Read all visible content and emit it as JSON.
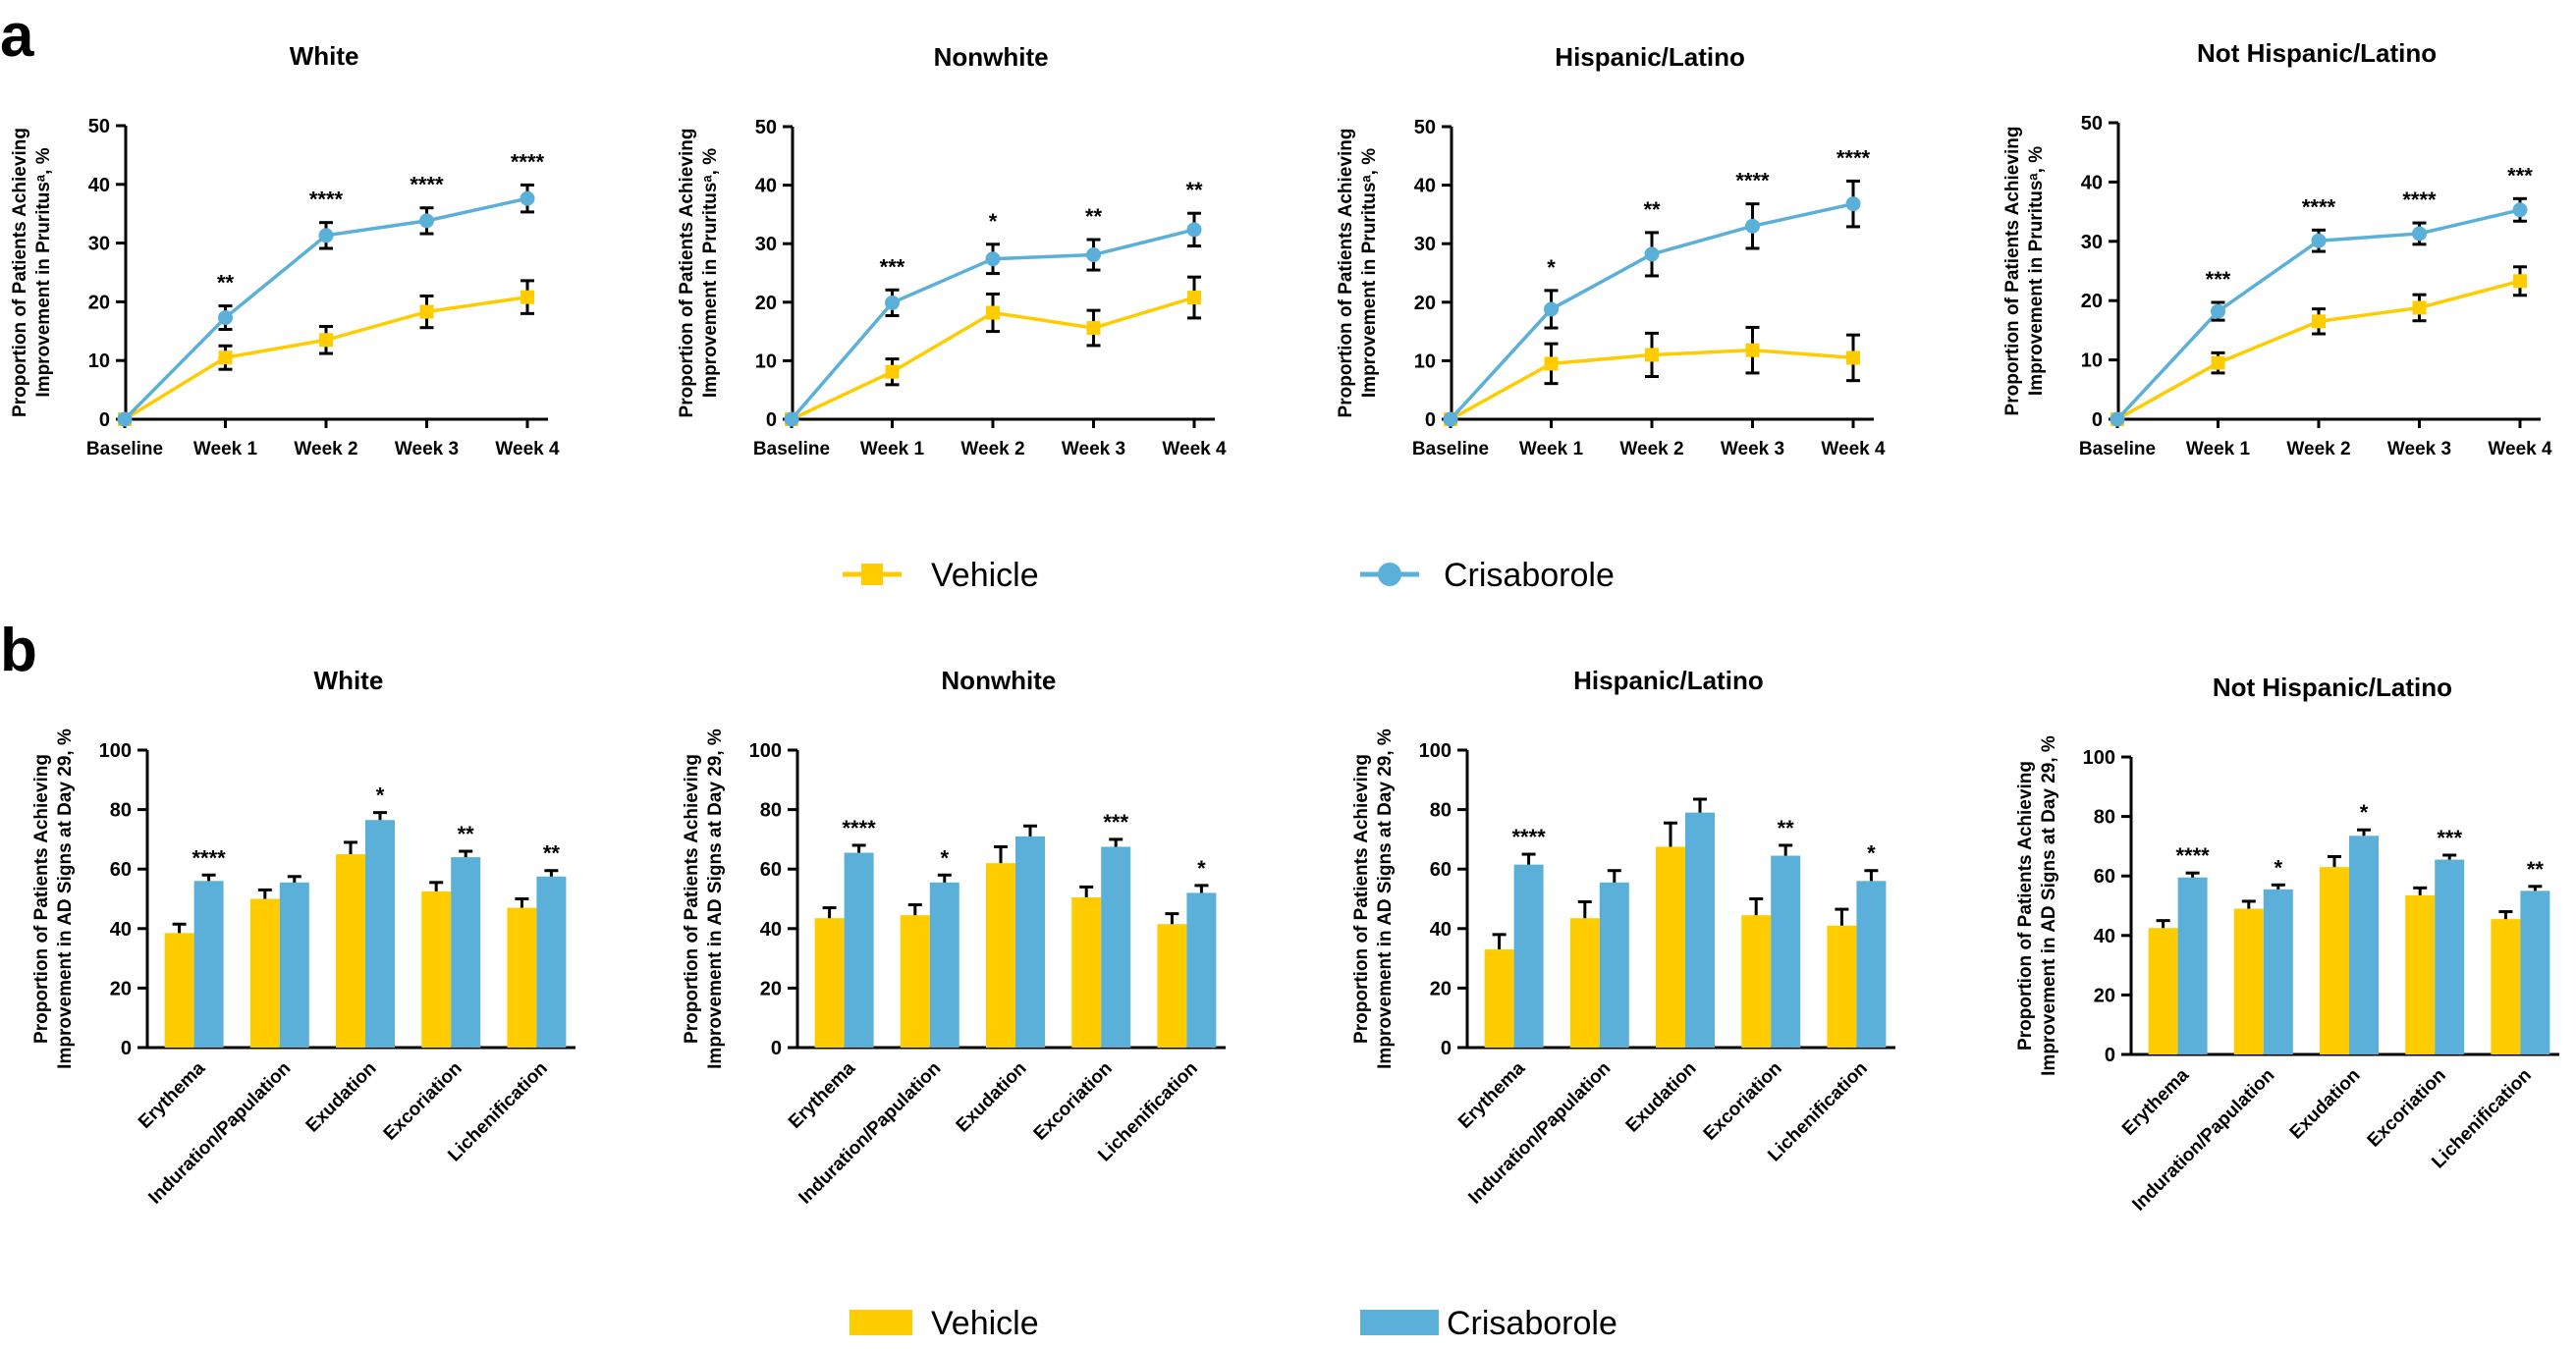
{
  "panels": {
    "a": {
      "label": "a"
    },
    "b": {
      "label": "b"
    }
  },
  "colors": {
    "vehicle": "#FFCC00",
    "crisaborole": "#5BB0DA",
    "axis": "#000000"
  },
  "legend_a": {
    "vehicle": "Vehicle",
    "crisaborole": "Crisaborole"
  },
  "legend_b": {
    "vehicle": "Vehicle",
    "crisaborole": "Crisaborole"
  },
  "chart_data": [
    {
      "type": "line",
      "panel": "a",
      "title": "White",
      "ylabel": [
        "Proportion of Patients Achieving",
        "Improvement in Pruritusᵃ, %"
      ],
      "xlabel": "",
      "categories": [
        "Baseline",
        "Week 1",
        "Week 2",
        "Week 3",
        "Week 4"
      ],
      "ylim": [
        0,
        50
      ],
      "yticks": [
        0,
        10,
        20,
        30,
        40,
        50
      ],
      "series": [
        {
          "name": "Vehicle",
          "values": [
            0,
            10.5,
            13.5,
            18.3,
            20.8
          ],
          "errors": [
            0,
            2,
            2.3,
            2.7,
            2.8
          ]
        },
        {
          "name": "Crisaborole",
          "values": [
            0,
            17.3,
            31.3,
            33.8,
            37.6
          ],
          "errors": [
            0,
            2,
            2.2,
            2.2,
            2.3
          ]
        }
      ],
      "annotations": [
        "",
        "**",
        "****",
        "****",
        "****"
      ]
    },
    {
      "type": "line",
      "panel": "a",
      "title": "Nonwhite",
      "ylabel": [
        "Proportion of Patients Achieving",
        "Improvement in Pruritusᵃ, %"
      ],
      "xlabel": "",
      "categories": [
        "Baseline",
        "Week 1",
        "Week 2",
        "Week 3",
        "Week 4"
      ],
      "ylim": [
        0,
        50
      ],
      "yticks": [
        0,
        10,
        20,
        30,
        40,
        50
      ],
      "series": [
        {
          "name": "Vehicle",
          "values": [
            0,
            8.1,
            18.2,
            15.6,
            20.8
          ],
          "errors": [
            0,
            2.2,
            3.2,
            3,
            3.5
          ]
        },
        {
          "name": "Crisaborole",
          "values": [
            0,
            19.9,
            27.4,
            28.1,
            32.4
          ],
          "errors": [
            0,
            2.2,
            2.5,
            2.6,
            2.8
          ]
        }
      ],
      "annotations": [
        "",
        "***",
        "*",
        "**",
        "**"
      ]
    },
    {
      "type": "line",
      "panel": "a",
      "title": "Hispanic/Latino",
      "ylabel": [
        "Proportion of Patients Achieving",
        "Improvement in Pruritusᵃ, %"
      ],
      "xlabel": "",
      "categories": [
        "Baseline",
        "Week 1",
        "Week 2",
        "Week 3",
        "Week 4"
      ],
      "ylim": [
        0,
        50
      ],
      "yticks": [
        0,
        10,
        20,
        30,
        40,
        50
      ],
      "series": [
        {
          "name": "Vehicle",
          "values": [
            0,
            9.5,
            11,
            11.8,
            10.5
          ],
          "errors": [
            0,
            3.4,
            3.7,
            3.9,
            3.9
          ]
        },
        {
          "name": "Crisaborole",
          "values": [
            0,
            18.8,
            28.2,
            33,
            36.8
          ],
          "errors": [
            0,
            3.2,
            3.7,
            3.8,
            3.9
          ]
        }
      ],
      "annotations": [
        "",
        "*",
        "**",
        "****",
        "****"
      ]
    },
    {
      "type": "line",
      "panel": "a",
      "title": "Not Hispanic/Latino",
      "ylabel": [
        "Proportion of Patients Achieving",
        "Improvement in Pruritusᵃ, %"
      ],
      "xlabel": "",
      "categories": [
        "Baseline",
        "Week 1",
        "Week 2",
        "Week 3",
        "Week 4"
      ],
      "ylim": [
        0,
        50
      ],
      "yticks": [
        0,
        10,
        20,
        30,
        40,
        50
      ],
      "series": [
        {
          "name": "Vehicle",
          "values": [
            0,
            9.5,
            16.5,
            18.8,
            23.3
          ],
          "errors": [
            0,
            1.7,
            2.1,
            2.2,
            2.4
          ]
        },
        {
          "name": "Crisaborole",
          "values": [
            0,
            18.2,
            30.1,
            31.3,
            35.3
          ],
          "errors": [
            0,
            1.5,
            1.8,
            1.8,
            1.9
          ]
        }
      ],
      "annotations": [
        "",
        "***",
        "****",
        "****",
        "***"
      ]
    },
    {
      "type": "bar",
      "panel": "b",
      "title": "White",
      "ylabel": [
        "Proportion of Patients Achieving",
        "Improvement in AD Signs at Day 29, %"
      ],
      "xlabel": "",
      "categories": [
        "Erythema",
        "Induration/Papulation",
        "Exudation",
        "Excoriation",
        "Lichenification"
      ],
      "ylim": [
        0,
        100
      ],
      "yticks": [
        0,
        20,
        40,
        60,
        80,
        100
      ],
      "series": [
        {
          "name": "Vehicle",
          "values": [
            38.5,
            50,
            65,
            52.5,
            47
          ],
          "errors": [
            3,
            3,
            4,
            3,
            3
          ]
        },
        {
          "name": "Crisaborole",
          "values": [
            56,
            55.5,
            76.5,
            64,
            57.5
          ],
          "errors": [
            2,
            2,
            2.5,
            2,
            2
          ]
        }
      ],
      "annotations": [
        "****",
        "",
        "*",
        "**",
        "**"
      ]
    },
    {
      "type": "bar",
      "panel": "b",
      "title": "Nonwhite",
      "ylabel": [
        "Proportion of Patients Achieving",
        "Improvement in AD Signs at Day 29, %"
      ],
      "xlabel": "",
      "categories": [
        "Erythema",
        "Induration/Papulation",
        "Exudation",
        "Excoriation",
        "Lichenification"
      ],
      "ylim": [
        0,
        100
      ],
      "yticks": [
        0,
        20,
        40,
        60,
        80,
        100
      ],
      "series": [
        {
          "name": "Vehicle",
          "values": [
            43.5,
            44.5,
            62,
            50.5,
            41.5
          ],
          "errors": [
            3.5,
            3.5,
            5.5,
            3.5,
            3.5
          ]
        },
        {
          "name": "Crisaborole",
          "values": [
            65.5,
            55.5,
            71,
            67.5,
            52
          ],
          "errors": [
            2.5,
            2.5,
            3.5,
            2.5,
            2.5
          ]
        }
      ],
      "annotations": [
        "****",
        "*",
        "",
        "***",
        "*"
      ]
    },
    {
      "type": "bar",
      "panel": "b",
      "title": "Hispanic/Latino",
      "ylabel": [
        "Proportion of Patients Achieving",
        "Improvement in AD Signs at Day 29, %"
      ],
      "xlabel": "",
      "categories": [
        "Erythema",
        "Induration/Papulation",
        "Exudation",
        "Excoriation",
        "Lichenification"
      ],
      "ylim": [
        0,
        100
      ],
      "yticks": [
        0,
        20,
        40,
        60,
        80,
        100
      ],
      "series": [
        {
          "name": "Vehicle",
          "values": [
            33,
            43.5,
            67.5,
            44.5,
            41
          ],
          "errors": [
            5,
            5.5,
            8,
            5.5,
            5.5
          ]
        },
        {
          "name": "Crisaborole",
          "values": [
            61.5,
            55.5,
            79,
            64.5,
            56
          ],
          "errors": [
            3.5,
            4,
            4.5,
            3.5,
            3.5
          ]
        }
      ],
      "annotations": [
        "****",
        "",
        "",
        "**",
        "*"
      ]
    },
    {
      "type": "bar",
      "panel": "b",
      "title": "Not Hispanic/Latino",
      "ylabel": [
        "Proportion of Patients Achieving",
        "Improvement in AD Signs at Day 29, %"
      ],
      "xlabel": "",
      "categories": [
        "Erythema",
        "Induration/Papulation",
        "Exudation",
        "Excoriation",
        "Lichenification"
      ],
      "ylim": [
        0,
        100
      ],
      "yticks": [
        0,
        20,
        40,
        60,
        80,
        100
      ],
      "series": [
        {
          "name": "Vehicle",
          "values": [
            42.5,
            49,
            63,
            53.5,
            45.5
          ],
          "errors": [
            2.5,
            2.5,
            3.5,
            2.5,
            2.5
          ]
        },
        {
          "name": "Crisaborole",
          "values": [
            59.5,
            55.5,
            73.5,
            65.5,
            55
          ],
          "errors": [
            1.5,
            1.5,
            2,
            1.5,
            1.5
          ]
        }
      ],
      "annotations": [
        "****",
        "*",
        "*",
        "***",
        "**"
      ]
    }
  ]
}
